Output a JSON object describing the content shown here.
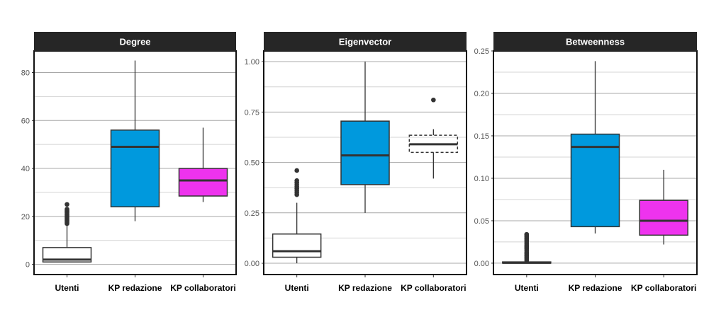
{
  "chart_data": [
    {
      "type": "box",
      "title": "Degree",
      "categories": [
        "Utenti",
        "KP redazione",
        "KP collaboratori"
      ],
      "ylim": [
        -4.25,
        89
      ],
      "yticks": [
        0,
        20,
        40,
        60,
        80
      ],
      "ytick_labels": [
        "0",
        "20",
        "40",
        "60",
        "80"
      ],
      "minor_yticks": [
        10,
        30,
        50,
        70
      ],
      "grid": true,
      "boxes": [
        {
          "low": 1,
          "q1": 1,
          "median": 2,
          "q3": 7,
          "high": 16.5,
          "outliers": [
            17,
            17.5,
            18,
            18.5,
            19,
            19.5,
            20,
            20.5,
            21,
            21.5,
            22,
            22.5,
            23,
            25
          ],
          "fill": "#ffffff",
          "dashed": false
        },
        {
          "low": 18,
          "q1": 24,
          "median": 49,
          "q3": 56,
          "high": 85,
          "outliers": [],
          "fill": "#0099dd",
          "dashed": false
        },
        {
          "low": 26,
          "q1": 28.5,
          "median": 35,
          "q3": 40,
          "high": 57,
          "outliers": [],
          "fill": "#ee33ee",
          "dashed": false
        }
      ]
    },
    {
      "type": "box",
      "title": "Eigenvector",
      "categories": [
        "Utenti",
        "KP redazione",
        "KP collaboratori"
      ],
      "ylim": [
        -0.056,
        1.053
      ],
      "yticks": [
        0,
        0.25,
        0.5,
        0.75,
        1.0
      ],
      "ytick_labels": [
        "0.00",
        "0.25",
        "0.50",
        "0.75",
        "1.00"
      ],
      "minor_yticks": [
        0.125,
        0.375,
        0.625,
        0.875
      ],
      "grid": true,
      "boxes": [
        {
          "low": 0,
          "q1": 0.03,
          "median": 0.06,
          "q3": 0.145,
          "high": 0.3,
          "outliers": [
            0.34,
            0.35,
            0.36,
            0.37,
            0.38,
            0.39,
            0.4,
            0.41,
            0.46
          ],
          "fill": "#ffffff",
          "dashed": false
        },
        {
          "low": 0.25,
          "q1": 0.39,
          "median": 0.535,
          "q3": 0.705,
          "high": 1.0,
          "outliers": [],
          "fill": "#0099dd",
          "dashed": false
        },
        {
          "low": 0.42,
          "q1": 0.55,
          "median": 0.59,
          "q3": 0.635,
          "high": 0.665,
          "outliers": [
            0.81
          ],
          "fill": "none",
          "dashed": true
        }
      ]
    },
    {
      "type": "box",
      "title": "Betweenness",
      "categories": [
        "Utenti",
        "KP redazione",
        "KP collaboratori"
      ],
      "ylim": [
        -0.0134,
        0.25
      ],
      "yticks": [
        0,
        0.05,
        0.1,
        0.15,
        0.2,
        0.25
      ],
      "ytick_labels": [
        "0.00",
        "0.05",
        "0.10",
        "0.15",
        "0.20",
        "0.25"
      ],
      "minor_yticks": [
        0.025,
        0.075,
        0.125,
        0.175,
        0.225
      ],
      "grid": true,
      "boxes": [
        {
          "low": 0,
          "q1": 0,
          "median": 0.0005,
          "q3": 0.0015,
          "high": 0.0025,
          "outliers": [
            0.003,
            0.005,
            0.007,
            0.009,
            0.011,
            0.013,
            0.015,
            0.017,
            0.019,
            0.021,
            0.023,
            0.025,
            0.027,
            0.029,
            0.031,
            0.033,
            0.034
          ],
          "fill": "#ffffff",
          "dashed": false
        },
        {
          "low": 0.035,
          "q1": 0.043,
          "median": 0.137,
          "q3": 0.152,
          "high": 0.238,
          "outliers": [],
          "fill": "#0099dd",
          "dashed": false
        },
        {
          "low": 0.022,
          "q1": 0.033,
          "median": 0.05,
          "q3": 0.074,
          "high": 0.11,
          "outliers": [],
          "fill": "#ee33ee",
          "dashed": false
        }
      ]
    }
  ]
}
